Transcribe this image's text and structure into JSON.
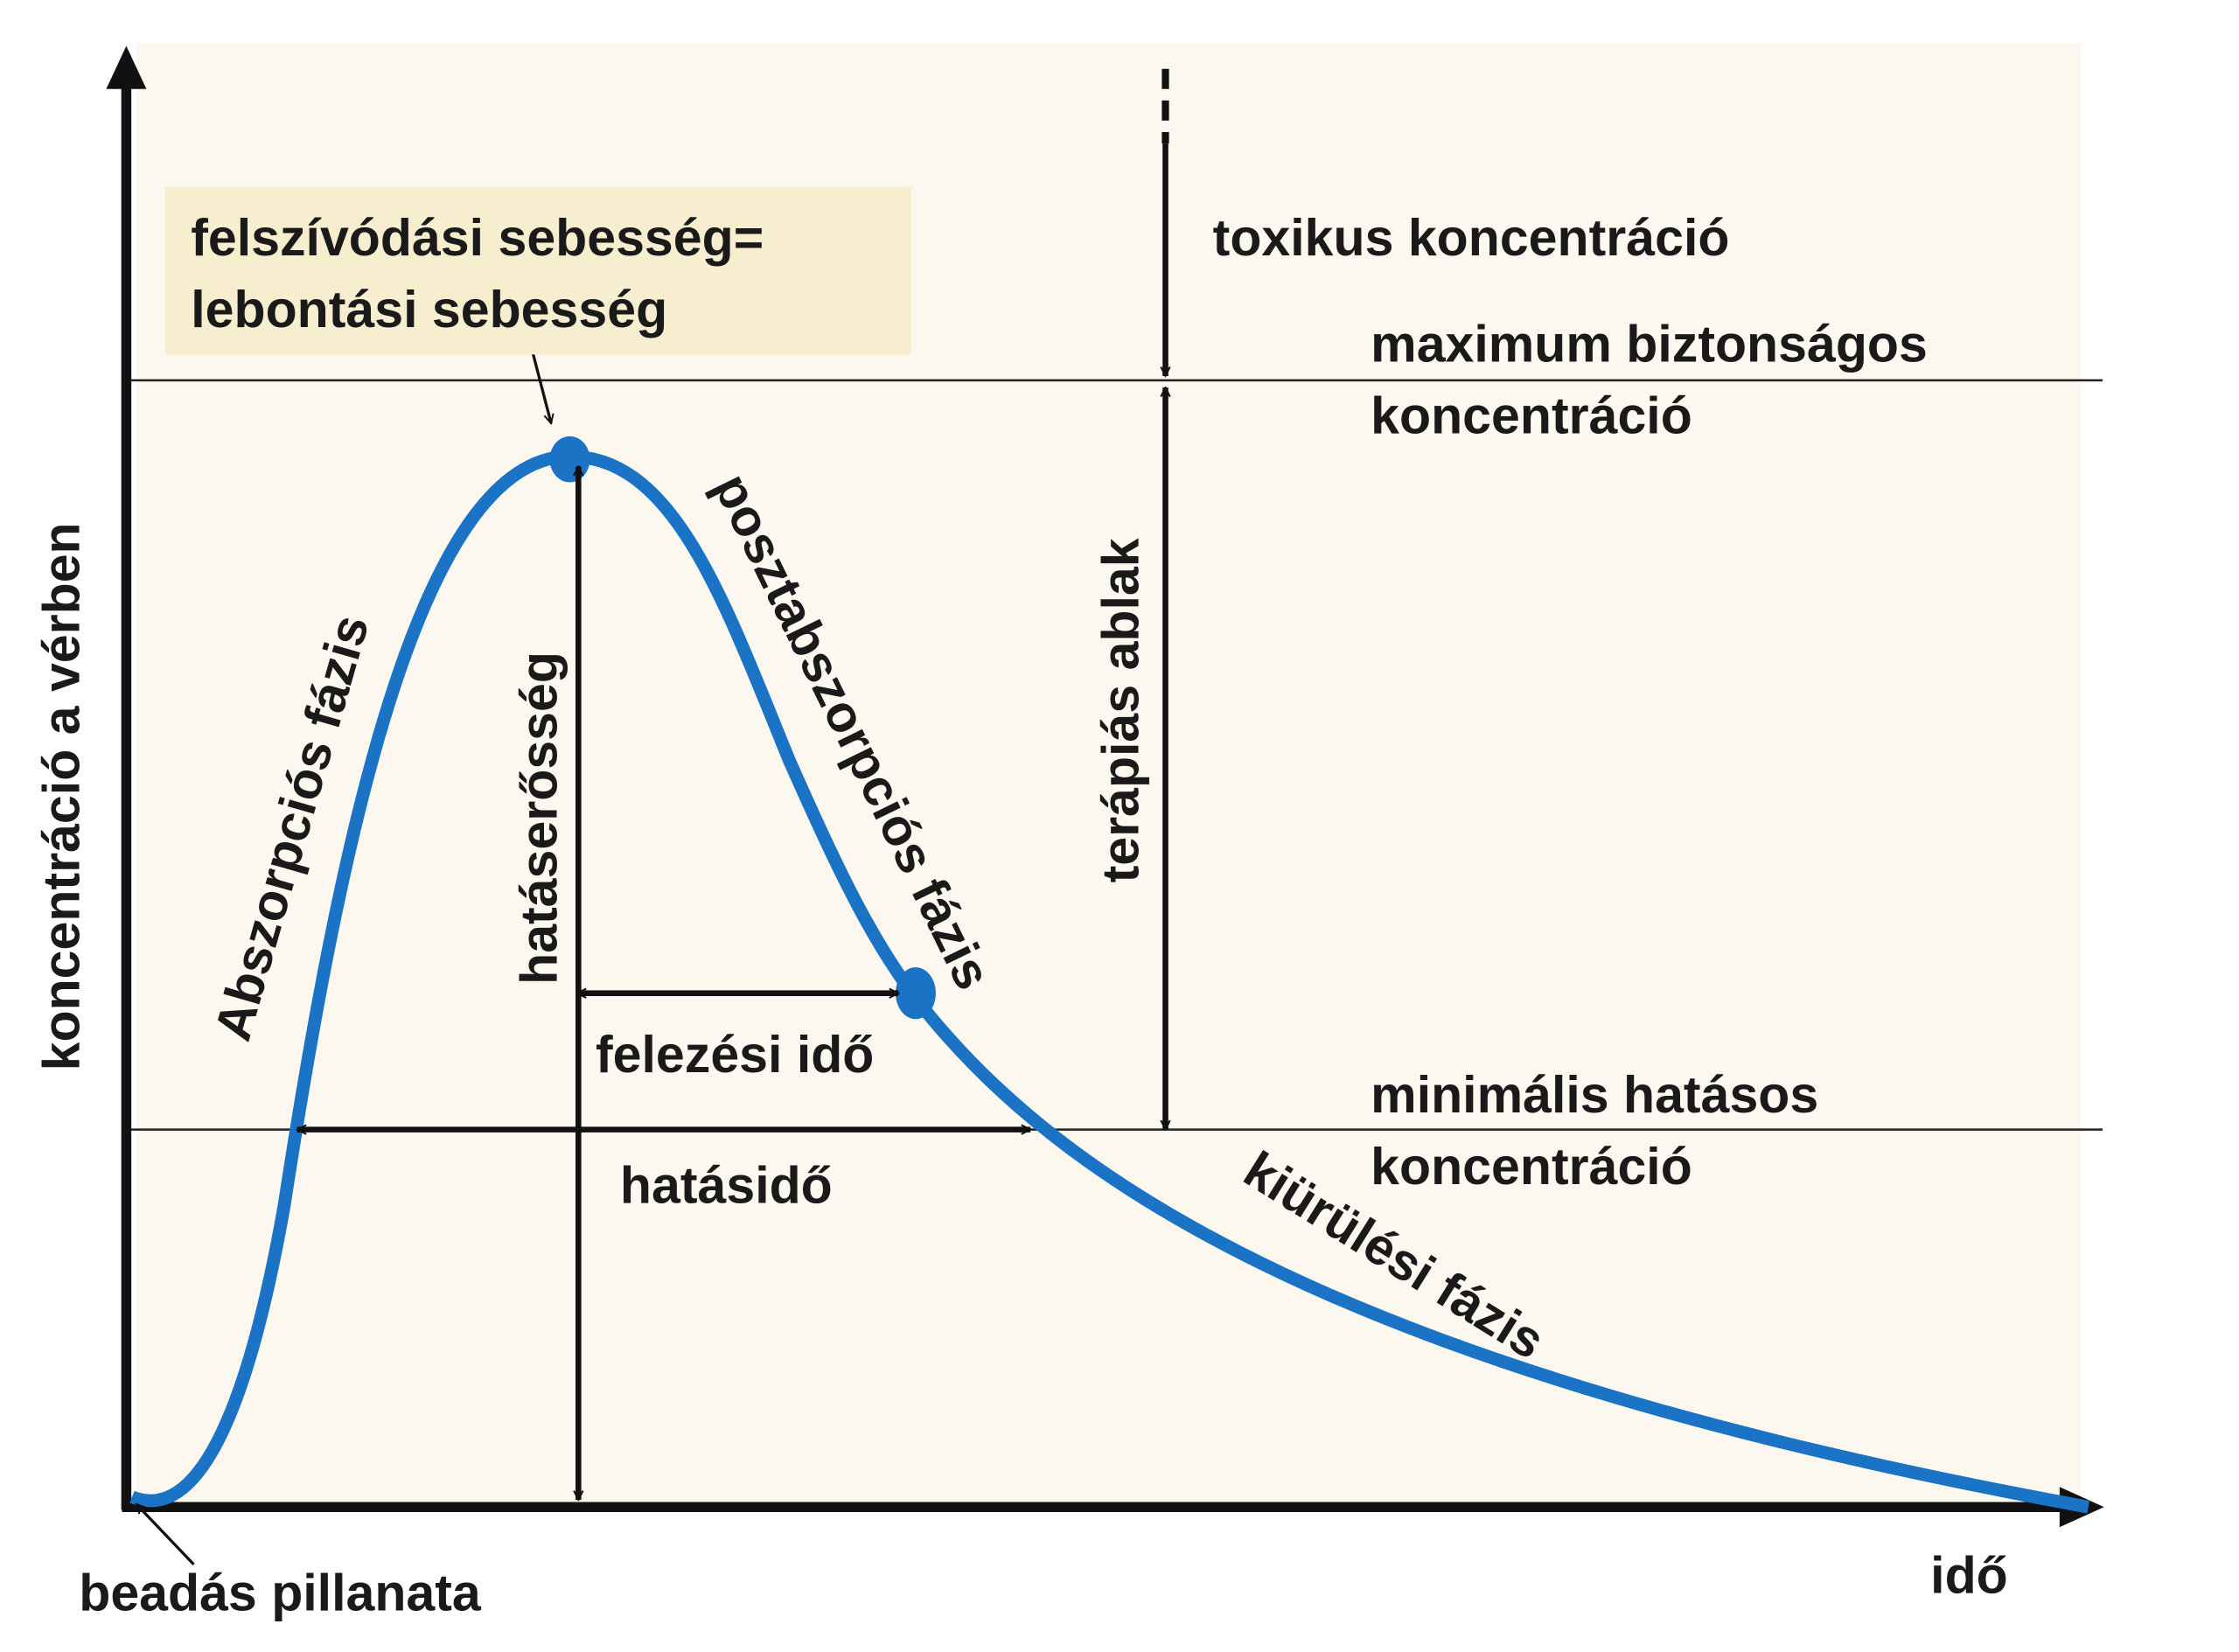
{
  "y_axis_label": "koncentráció a vérben",
  "x_axis_label": "idő",
  "origin_label": "beadás pillanata",
  "peak_note": [
    "felszívódási sebesség=",
    "lebontási sebesség"
  ],
  "toxic_label": "toxikus koncentráció",
  "max_safe_label": [
    "maximum biztonságos",
    "koncentráció"
  ],
  "min_effective_label": [
    "minimális hatásos",
    "koncentráció"
  ],
  "therapeutic_window_label": "terápiás ablak",
  "intensity_label": "hatáserősség",
  "half_life_label": "felezési idő",
  "duration_label": "hatásidő",
  "phases": {
    "absorption": "Abszorpciós fázis",
    "post_absorption": "posztabszorpciós fázis",
    "elimination": "kiürülési fázis"
  }
}
